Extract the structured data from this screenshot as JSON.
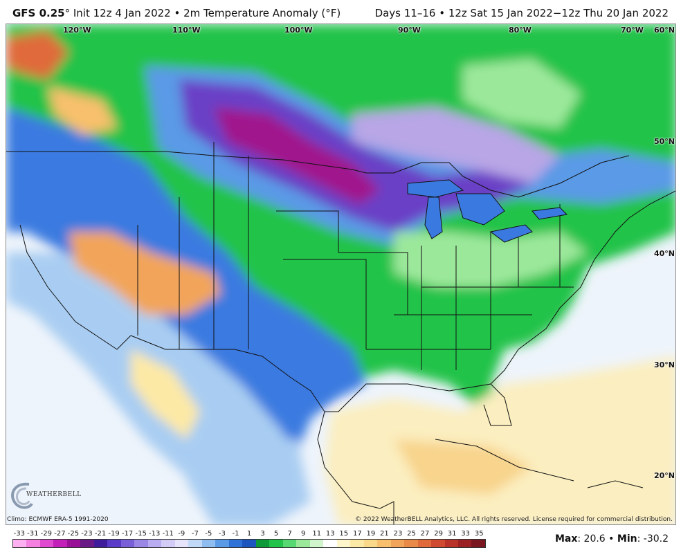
{
  "header": {
    "model": "GFS 0.25",
    "degree": "°",
    "title_rest": " Init 12z 4 Jan 2022 • 2m Temperature Anomaly (°F)",
    "valid": "Days 11–16 • 12z Sat 15 Jan 2022−12z Thu 20 Jan 2022"
  },
  "map": {
    "lon_labels": [
      "120°W",
      "110°W",
      "100°W",
      "90°W",
      "80°W",
      "70°W"
    ],
    "lat_labels": [
      "60°N",
      "50°N",
      "40°N",
      "30°N",
      "20°N"
    ],
    "colors": {
      "deep_magenta": "#a0158c",
      "purple": "#6a3fc6",
      "lavender": "#b8a6e6",
      "blue": "#3a7ae0",
      "light_blue": "#a9cdf2",
      "green": "#22c34a",
      "light_green": "#9ce89b",
      "pale_yellow": "#fbeec0",
      "orange": "#f2a55a",
      "ocean": "#eef4fb"
    }
  },
  "footer": {
    "climo": "Climo: ECMWF ERA-5 1991-2020",
    "copyright": "© 2022 WeatherBELL Analytics, LLC. All rights reserved. License required for commercial distribution."
  },
  "logo": {
    "text": "WEATHERBELL"
  },
  "colorbar": {
    "labels": [
      "-33",
      "-31",
      "-29",
      "-27",
      "-25",
      "-23",
      "-21",
      "-19",
      "-17",
      "-15",
      "-13",
      "-11",
      "-9",
      "-7",
      "-5",
      "-3",
      "-1",
      "1",
      "3",
      "5",
      "7",
      "9",
      "11",
      "13",
      "15",
      "17",
      "19",
      "21",
      "23",
      "25",
      "27",
      "29",
      "31",
      "33",
      "35"
    ],
    "colors": [
      "#ffb0f0",
      "#f580e0",
      "#e04ad0",
      "#c220b8",
      "#9a1096",
      "#6a1a86",
      "#3f1c9c",
      "#5a3cc8",
      "#7a60d8",
      "#9b88e6",
      "#b9acf0",
      "#d3ccf6",
      "#e6e4fa",
      "#bfd9f6",
      "#8fbdf0",
      "#5a9ae6",
      "#2f73d8",
      "#1e56c0",
      "#0f9a3a",
      "#22c34a",
      "#58d872",
      "#9ce89b",
      "#d0f4cc",
      "#ffffff",
      "#fff6cc",
      "#fde9a6",
      "#fbd98a",
      "#f8c06c",
      "#f2a55a",
      "#ea8a48",
      "#e06a3a",
      "#cf4a30",
      "#b8322a",
      "#9a2024",
      "#7a1620"
    ]
  },
  "maxmin": {
    "max_label": "Max",
    "max_value": "20.6",
    "min_label": "Min",
    "min_value": "-30.2"
  }
}
